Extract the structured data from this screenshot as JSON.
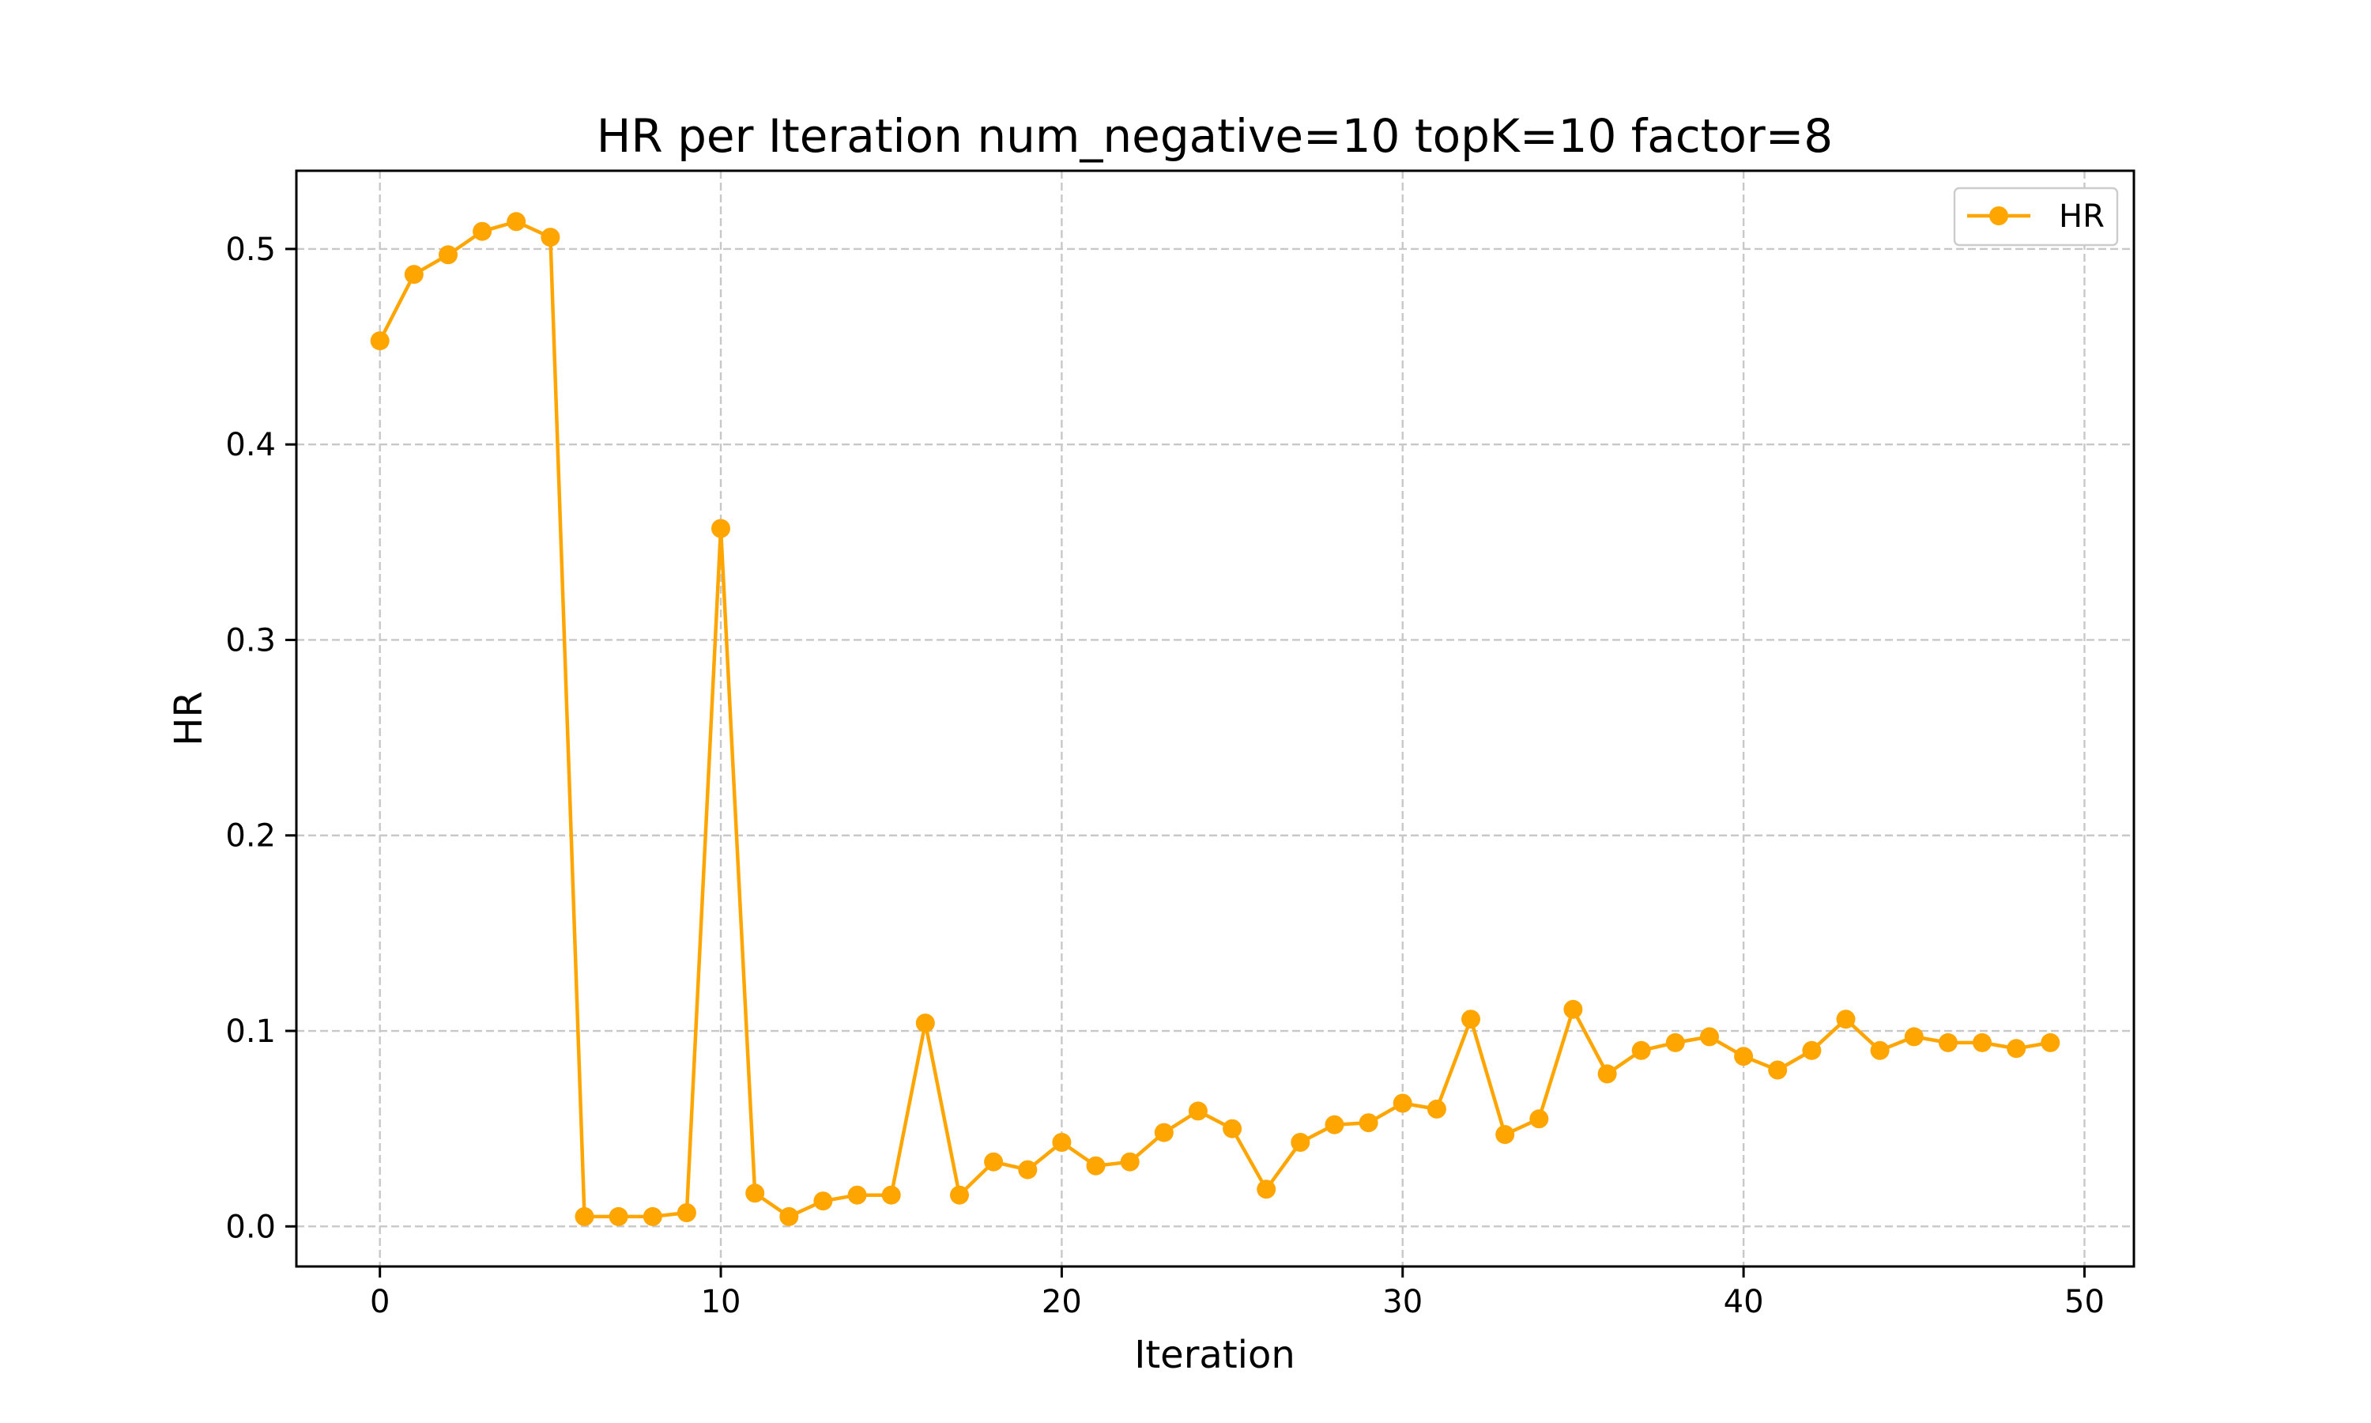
{
  "chart_data": {
    "type": "line",
    "title": "HR per Iteration num_negative=10 topK=10 factor=8",
    "xlabel": "Iteration",
    "ylabel": "HR",
    "xlim": [
      -2.45,
      51.45
    ],
    "ylim": [
      -0.0205,
      0.54
    ],
    "xticks": [
      0,
      10,
      20,
      30,
      40,
      50
    ],
    "xtick_labels": [
      "0",
      "10",
      "20",
      "30",
      "40",
      "50"
    ],
    "yticks": [
      0.0,
      0.1,
      0.2,
      0.3,
      0.4,
      0.5
    ],
    "ytick_labels": [
      "0.0",
      "0.1",
      "0.2",
      "0.3",
      "0.4",
      "0.5"
    ],
    "grid": true,
    "legend_position": "top-right",
    "series": [
      {
        "name": "HR",
        "color": "#ffa500",
        "marker": "circle",
        "x": [
          0,
          1,
          2,
          3,
          4,
          5,
          6,
          7,
          8,
          9,
          10,
          11,
          12,
          13,
          14,
          15,
          16,
          17,
          18,
          19,
          20,
          21,
          22,
          23,
          24,
          25,
          26,
          27,
          28,
          29,
          30,
          31,
          32,
          33,
          34,
          35,
          36,
          37,
          38,
          39,
          40,
          41,
          42,
          43,
          44,
          45,
          46,
          47,
          48,
          49
        ],
        "values": [
          0.453,
          0.487,
          0.497,
          0.509,
          0.514,
          0.506,
          0.005,
          0.005,
          0.005,
          0.007,
          0.357,
          0.017,
          0.005,
          0.013,
          0.016,
          0.016,
          0.104,
          0.016,
          0.033,
          0.029,
          0.043,
          0.031,
          0.033,
          0.048,
          0.059,
          0.05,
          0.019,
          0.043,
          0.052,
          0.053,
          0.063,
          0.06,
          0.106,
          0.047,
          0.055,
          0.111,
          0.078,
          0.09,
          0.094,
          0.097,
          0.087,
          0.08,
          0.09,
          0.106,
          0.09,
          0.097,
          0.094,
          0.094,
          0.091,
          0.094
        ]
      }
    ]
  }
}
